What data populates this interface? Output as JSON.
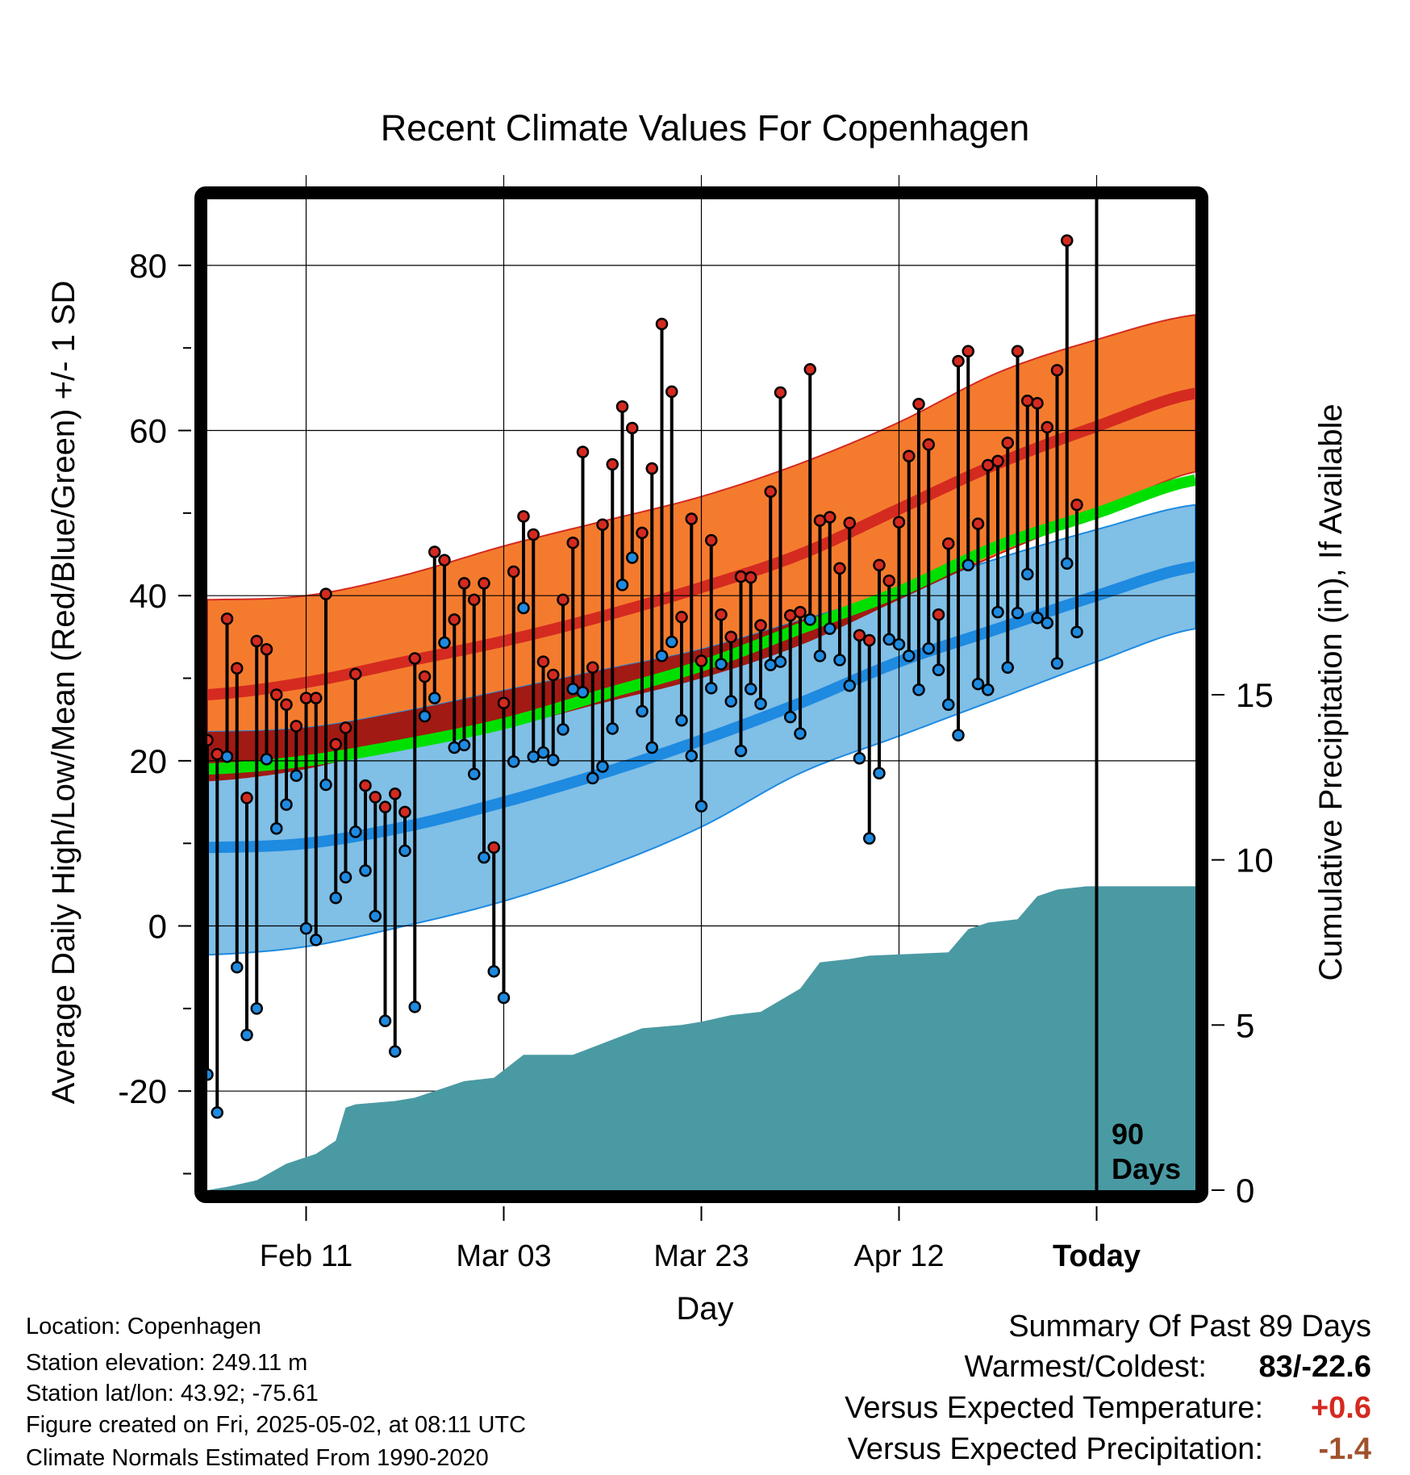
{
  "chart_data": {
    "type": "line",
    "title": "Recent Climate Values For Copenhagen",
    "xlabel": "Day",
    "ylabel": "Average Daily High/Low/Mean (Red/Blue/Green) +/- 1 SD",
    "y2label": "Cumulative Precipitation (in), If Available",
    "ylim": [
      -32,
      88
    ],
    "y2lim": [
      0,
      30
    ],
    "yticks": [
      -20,
      0,
      20,
      40,
      60,
      80
    ],
    "y2ticks": [
      0,
      5,
      10,
      15
    ],
    "xlim": [
      0,
      100
    ],
    "xticks": [
      {
        "day": 10,
        "label": "Feb 11"
      },
      {
        "day": 30,
        "label": "Mar 03"
      },
      {
        "day": 50,
        "label": "Mar 23"
      },
      {
        "day": 70,
        "label": "Apr 12"
      },
      {
        "day": 90,
        "label": "Today"
      }
    ],
    "today_day": 90,
    "today_marker_label_line1": "90",
    "today_marker_label_line2": "Days",
    "grid": true,
    "normals": {
      "days": [
        0,
        10,
        20,
        30,
        40,
        50,
        60,
        70,
        80,
        90,
        100
      ],
      "high_mean": [
        28,
        29.5,
        32,
        34.5,
        37.5,
        41,
        45,
        50.5,
        56,
        60.5,
        64.5
      ],
      "high_upper": [
        39.5,
        40,
        42.5,
        46,
        49,
        52,
        56,
        61,
        67,
        71,
        74
      ],
      "high_lower": [
        17.5,
        19,
        22,
        24,
        27,
        30,
        34,
        39.5,
        45,
        50,
        55
      ],
      "low_mean": [
        9.5,
        10,
        12,
        15,
        18.5,
        22.5,
        27,
        32,
        36,
        40,
        43.5
      ],
      "low_upper": [
        23.5,
        24,
        26,
        28.5,
        31,
        33.5,
        37,
        40.5,
        44.5,
        48,
        51
      ],
      "low_lower": [
        -3.5,
        -2.5,
        0,
        3,
        7,
        12,
        18.5,
        23,
        27.5,
        32,
        36
      ],
      "avg_mean": [
        19,
        20,
        22,
        24.5,
        28,
        31.5,
        36,
        40.5,
        46,
        50,
        54
      ]
    },
    "series": [
      {
        "name": "High",
        "color": "#d42a20",
        "values": [
          22.5,
          20.8,
          37.2,
          31.2,
          15.5,
          34.5,
          33.5,
          28,
          26.8,
          24.2,
          27.6,
          27.6,
          40.2,
          22,
          24,
          30.5,
          17,
          15.6,
          14.4,
          16,
          13.8,
          32.4,
          30.2,
          45.3,
          44.3,
          37.1,
          41.5,
          39.5,
          41.5,
          9.5,
          27,
          42.9,
          49.6,
          47.4,
          32,
          30.4,
          39.5,
          46.4,
          57.4,
          31.3,
          48.6,
          55.9,
          62.9,
          60.3,
          47.6,
          55.4,
          72.9,
          64.7,
          37.4,
          49.3,
          32.1,
          46.7,
          37.7,
          35,
          42.3,
          42.2,
          36.4,
          52.6,
          64.6,
          37.6,
          38,
          67.4,
          49.1,
          49.5,
          43.3,
          48.8,
          35.2,
          34.6,
          43.7,
          41.8,
          48.9,
          56.9,
          63.2,
          58.3,
          37.7,
          46.3,
          68.4,
          69.6,
          48.7,
          55.8,
          56.3,
          58.5,
          69.6,
          63.6,
          63.3,
          60.4,
          67.3,
          83,
          51
        ]
      },
      {
        "name": "Low",
        "color": "#1e8ae0",
        "values": [
          -18,
          -22.6,
          20.5,
          -5,
          -13.2,
          -10,
          20.2,
          11.8,
          14.7,
          18.2,
          -0.3,
          -1.7,
          17.1,
          3.4,
          5.9,
          11.4,
          6.7,
          1.2,
          -11.5,
          -15.2,
          9.1,
          -9.8,
          25.4,
          27.6,
          34.3,
          21.6,
          21.9,
          18.4,
          8.3,
          -5.5,
          -8.7,
          19.9,
          38.5,
          20.5,
          21,
          20.1,
          23.8,
          28.7,
          28.3,
          17.9,
          19.3,
          23.9,
          41.3,
          44.6,
          26,
          21.6,
          32.7,
          34.4,
          24.9,
          20.6,
          14.5,
          28.8,
          31.7,
          27.2,
          21.2,
          28.7,
          26.9,
          31.6,
          32,
          25.3,
          23.3,
          37.1,
          32.7,
          36,
          32.2,
          29.1,
          20.3,
          10.6,
          18.5,
          34.7,
          34.1,
          32.7,
          28.6,
          33.6,
          31,
          26.8,
          23.1,
          43.7,
          29.3,
          28.6,
          38,
          31.3,
          37.9,
          42.6,
          37.3,
          36.7,
          31.8,
          43.9,
          35.6
        ]
      }
    ],
    "precip_days": [
      0,
      2,
      5,
      8,
      11,
      13,
      14,
      15,
      19,
      21,
      24,
      26,
      29,
      32,
      37,
      44,
      48,
      50,
      53,
      56,
      60,
      62,
      65,
      67,
      75,
      77,
      79,
      82,
      84,
      86,
      89,
      100
    ],
    "precip_cum": [
      0,
      0.1,
      0.3,
      0.8,
      1.1,
      1.5,
      2.5,
      2.6,
      2.7,
      2.8,
      3.1,
      3.3,
      3.4,
      4.1,
      4.1,
      4.9,
      5,
      5.1,
      5.3,
      5.4,
      6.1,
      6.9,
      7,
      7.1,
      7.2,
      7.9,
      8.1,
      8.2,
      8.9,
      9.1,
      9.2,
      9.2
    ]
  },
  "info": {
    "location": "Location: Copenhagen",
    "elevation": "Station elevation: 249.11 m",
    "latlon": "Station lat/lon: 43.92; -75.61",
    "created": "Figure created on Fri, 2025-05-02, at 08:11 UTC",
    "normals": "Climate Normals Estimated From 1990-2020"
  },
  "summary": {
    "title": "Summary Of Past 89 Days",
    "warmest_coldest_label": "Warmest/Coldest:",
    "warmest_coldest_value": "83/-22.6",
    "temp_label": "Versus Expected Temperature:",
    "temp_value": "+0.6",
    "temp_color": "#d42a20",
    "precip_label": "Versus Expected Precipitation:",
    "precip_value": "-1.4",
    "precip_color": "#a0522d"
  }
}
